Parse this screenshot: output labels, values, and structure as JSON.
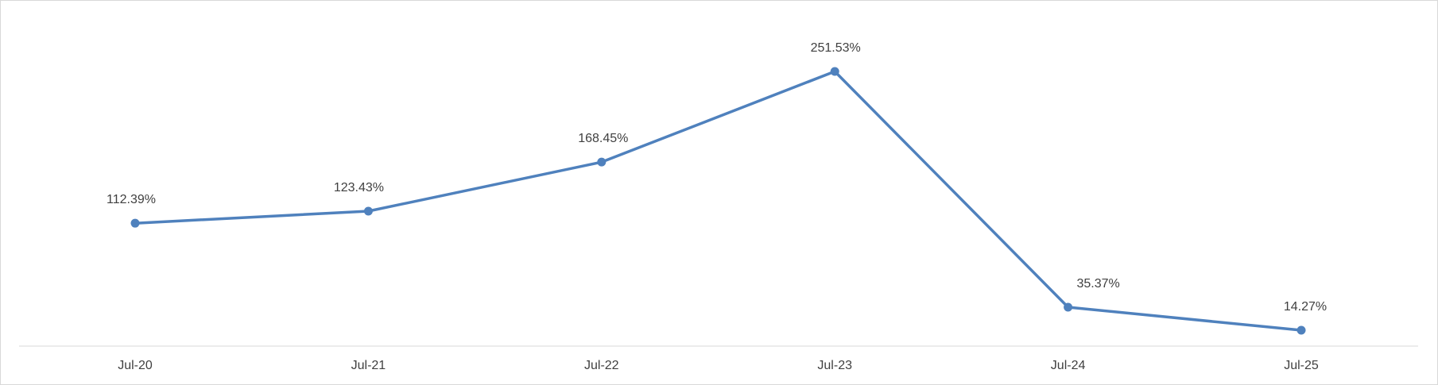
{
  "chart_data": {
    "type": "line",
    "title": "",
    "xlabel": "",
    "ylabel": "",
    "categories": [
      "Jul-20",
      "Jul-21",
      "Jul-22",
      "Jul-23",
      "Jul-24",
      "Jul-25"
    ],
    "series": [
      {
        "values": [
          112.39,
          123.43,
          168.45,
          251.53,
          35.37,
          14.27
        ],
        "labels": [
          "112.39%",
          "123.43%",
          "168.45%",
          "251.53%",
          "35.37%",
          "14.27%"
        ],
        "color": "#4f81bd"
      }
    ],
    "ylim": [
      0,
      270
    ],
    "grid": false,
    "legend": "none",
    "y_axis_visible": false
  }
}
